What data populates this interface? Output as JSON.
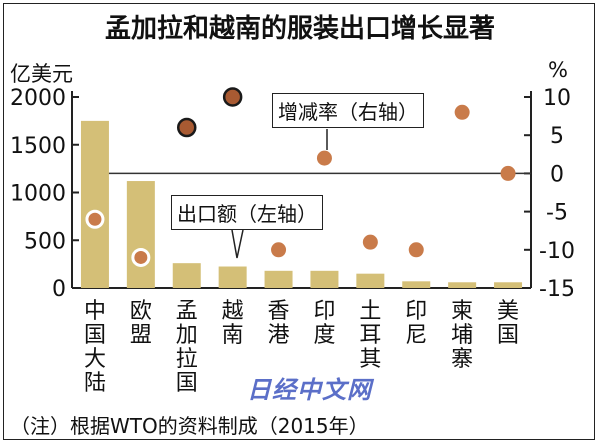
{
  "chart_data": {
    "type": "bar",
    "title": "孟加拉和越南的服装出口增长显著",
    "y_left_unit": "亿美元",
    "y_right_unit": "%",
    "categories": [
      "中国大陆",
      "欧盟",
      "孟加拉国",
      "越南",
      "香港",
      "印度",
      "土耳其",
      "印尼",
      "柬埔寨",
      "美国"
    ],
    "series": [
      {
        "name": "出口额（左轴）",
        "type": "bar",
        "axis": "left",
        "values": [
          1750,
          1120,
          260,
          225,
          180,
          180,
          150,
          70,
          60,
          60
        ],
        "color": "#d4bf77"
      },
      {
        "name": "增减率（右轴）",
        "type": "scatter",
        "axis": "right",
        "values": [
          -6,
          -11,
          6,
          10,
          -10,
          2,
          -9,
          -10,
          8,
          0
        ]
      }
    ],
    "point_styles": [
      "light",
      "light",
      "dark",
      "dark",
      "brown",
      "brown",
      "brown",
      "brown",
      "brown",
      "brown"
    ],
    "y_left": {
      "lim": [
        0,
        2000
      ],
      "ticks": [
        0,
        500,
        1000,
        1500,
        2000
      ]
    },
    "y_right": {
      "lim": [
        -15,
        10
      ],
      "ticks": [
        10,
        5,
        0,
        -5,
        -10,
        -15
      ]
    },
    "zero_line": 0,
    "colors": {
      "bar": "#d4bf77",
      "dot_brown": "#c97b4a",
      "dot_dark": "#a85a32",
      "dot_light": "#c97b4a",
      "axis": "#222222"
    },
    "note": "（注）根据WTO的资料制成（2015年）",
    "watermark": "日经中文网"
  }
}
